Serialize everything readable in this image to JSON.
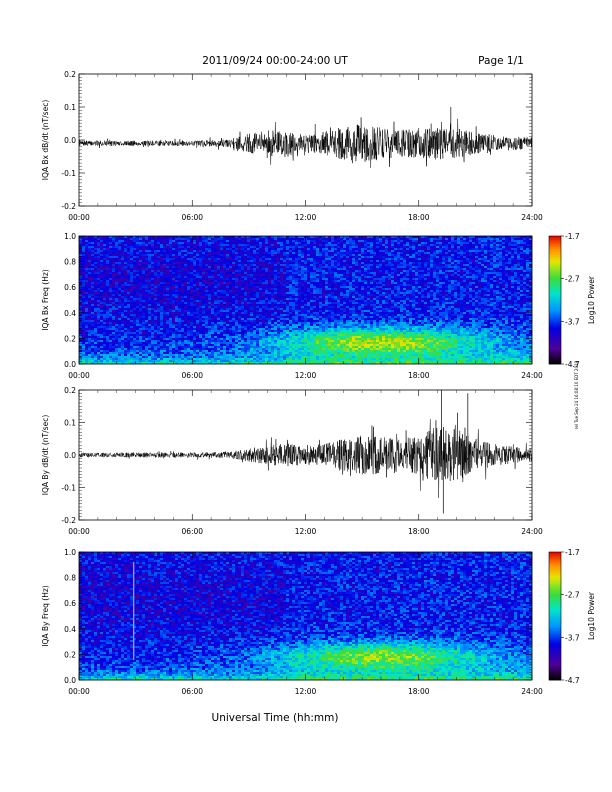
{
  "header": {
    "title": "2011/09/24  00:00-24:00 UT",
    "page": "Page 1/1"
  },
  "side_note": "rel Tue Sep 24 16:08:10 EDT 2019",
  "x_axis": {
    "tick_labels": [
      "00:00",
      "06:00",
      "12:00",
      "18:00",
      "24:00"
    ],
    "tick_hours": [
      0,
      6,
      12,
      18,
      24
    ],
    "xlabel": "Universal Time (hh:mm)",
    "xlim_hours": [
      0,
      24
    ]
  },
  "chart_data": [
    {
      "type": "line",
      "ylabel": "IQA Bx dB/dt (nT/sec)",
      "ylim": [
        -0.2,
        0.2
      ],
      "ytick_values": [
        -0.2,
        -0.1,
        0.0,
        0.1,
        0.2
      ],
      "ytick_labels": [
        "-0.2",
        "-0.1",
        "0.0",
        "0.1",
        "0.2"
      ],
      "series": [
        {
          "x_hours": [
            0,
            2,
            4,
            6,
            8,
            9,
            10,
            11,
            12,
            13,
            14,
            15,
            16,
            17,
            18,
            19,
            20,
            21,
            22,
            23,
            24
          ],
          "amplitude": [
            0.008,
            0.008,
            0.008,
            0.008,
            0.012,
            0.03,
            0.04,
            0.045,
            0.03,
            0.035,
            0.05,
            0.06,
            0.05,
            0.04,
            0.045,
            0.05,
            0.045,
            0.035,
            0.025,
            0.02,
            0.018
          ],
          "center": -0.01,
          "spikes": [
            {
              "x_hour": 19.7,
              "y": 0.1
            }
          ]
        }
      ]
    },
    {
      "type": "heatmap",
      "ylabel": "IQA Bx Freq (Hz)",
      "ylim": [
        0.0,
        1.0
      ],
      "ytick_values": [
        0.0,
        0.2,
        0.4,
        0.6,
        0.8,
        1.0
      ],
      "ytick_labels": [
        "0.0",
        "0.2",
        "0.4",
        "0.6",
        "0.8",
        "1.0"
      ],
      "colorbar": {
        "label": "Log10 Power",
        "range": [
          -4.7,
          -1.7
        ],
        "tick_values": [
          -1.7,
          -2.7,
          -3.7,
          -4.7
        ],
        "tick_labels": [
          "-1.7",
          "-2.7",
          "-3.7",
          "-4.7"
        ]
      },
      "hotspot": {
        "x_hour": 16.0,
        "freq_hz": 0.17,
        "log_power": -2.4
      }
    },
    {
      "type": "line",
      "ylabel": "IQA By dB/dt (nT/sec)",
      "ylim": [
        -0.2,
        0.2
      ],
      "ytick_values": [
        -0.2,
        -0.1,
        0.0,
        0.1,
        0.2
      ],
      "ytick_labels": [
        "-0.2",
        "-0.1",
        "0.0",
        "0.1",
        "0.2"
      ],
      "series": [
        {
          "x_hours": [
            0,
            2,
            4,
            6,
            8,
            9,
            10,
            11,
            12,
            13,
            14,
            15,
            16,
            17,
            18,
            19,
            20,
            21,
            22,
            23,
            24
          ],
          "amplitude": [
            0.007,
            0.007,
            0.008,
            0.008,
            0.01,
            0.02,
            0.03,
            0.035,
            0.03,
            0.035,
            0.05,
            0.06,
            0.06,
            0.05,
            0.06,
            0.09,
            0.08,
            0.05,
            0.035,
            0.025,
            0.02
          ],
          "center": 0.0,
          "spikes": [
            {
              "x_hour": 19.2,
              "y": 0.2
            },
            {
              "x_hour": 20.6,
              "y": 0.19
            },
            {
              "x_hour": 19.3,
              "y": -0.18
            }
          ]
        }
      ]
    },
    {
      "type": "heatmap",
      "ylabel": "IQA By Freq (Hz)",
      "ylim": [
        0.0,
        1.0
      ],
      "ytick_values": [
        0.0,
        0.2,
        0.4,
        0.6,
        0.8,
        1.0
      ],
      "ytick_labels": [
        "0.0",
        "0.2",
        "0.4",
        "0.6",
        "0.8",
        "1.0"
      ],
      "colorbar": {
        "label": "Log10 Power",
        "range": [
          -4.7,
          -1.7
        ],
        "tick_values": [
          -1.7,
          -2.7,
          -3.7,
          -4.7
        ],
        "tick_labels": [
          "-1.7",
          "-2.7",
          "-3.7",
          "-4.7"
        ]
      },
      "hotspot": {
        "x_hour": 16.0,
        "freq_hz": 0.18,
        "log_power": -2.5
      }
    }
  ]
}
